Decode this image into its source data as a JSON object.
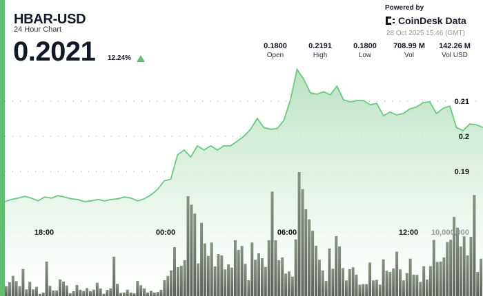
{
  "header": {
    "title": "HBAR-USD",
    "subtitle": "24 Hour Chart",
    "price": "0.2021",
    "change": "12.24%",
    "change_direction": "up"
  },
  "branding": {
    "powered_by": "Powered by",
    "name": "CoinDesk Data",
    "timestamp": "28 Oct 2025 15:46 (GMT)"
  },
  "stats": [
    {
      "value": "0.1800",
      "label": "Open"
    },
    {
      "value": "0.2191",
      "label": "High"
    },
    {
      "value": "0.1800",
      "label": "Low"
    },
    {
      "value": "708.99 M",
      "label": "Vol"
    },
    {
      "value": "142.26 M",
      "label": "Vol USD"
    }
  ],
  "colors": {
    "accent": "#5fbf73",
    "line": "#6cc77f",
    "volume": "#6f7a6c"
  },
  "chart_data": {
    "type": "area",
    "price_axis": {
      "ticks": [
        "0.21",
        "0.2",
        "0.19"
      ],
      "tick_values": [
        0.21,
        0.2,
        0.19
      ]
    },
    "time_axis": {
      "ticks": [
        "18:00",
        "00:00",
        "06:00",
        "12:00"
      ]
    },
    "volume_axis": {
      "label": "10,000,000",
      "value": 10000000
    },
    "prices": [
      0.1814,
      0.182,
      0.1824,
      0.1829,
      0.1824,
      0.1816,
      0.1827,
      0.1824,
      0.1831,
      0.1827,
      0.1822,
      0.182,
      0.1814,
      0.1816,
      0.182,
      0.1816,
      0.182,
      0.1822,
      0.1827,
      0.1824,
      0.1816,
      0.1822,
      0.1833,
      0.1849,
      0.1873,
      0.1878,
      0.1947,
      0.1961,
      0.1941,
      0.1973,
      0.1961,
      0.1973,
      0.1961,
      0.1973,
      0.1973,
      0.1986,
      0.2,
      0.202,
      0.2051,
      0.2025,
      0.202,
      0.2022,
      0.2045,
      0.2104,
      0.2191,
      0.2163,
      0.2124,
      0.212,
      0.2127,
      0.2118,
      0.2143,
      0.2104,
      0.2098,
      0.2102,
      0.2102,
      0.209,
      0.2094,
      0.2059,
      0.2069,
      0.2061,
      0.2065,
      0.2078,
      0.2084,
      0.2096,
      0.2098,
      0.2065,
      0.208,
      0.2086,
      0.2025,
      0.2016,
      0.2035,
      0.2033,
      0.2025
    ],
    "volumes_millions": [
      1.54,
      2.15,
      3.15,
      2.33,
      1.54,
      4.23,
      1.04,
      2.22,
      1.04,
      1.43,
      0.36,
      0.54,
      5.38,
      1.58,
      0.86,
      0.86,
      2.58,
      2.26,
      1.65,
      0.43,
      0.75,
      1.72,
      0.97,
      0.79,
      1.25,
      0.75,
      1.0,
      2.08,
      1.18,
      0.36,
      0.97,
      1.18,
      6.13,
      1.9,
      0.5,
      0.54,
      1.0,
      0.54,
      0.43,
      2.37,
      1.68,
      1.18,
      0.54,
      0.82,
      0.54,
      0.65,
      0.97,
      2.47,
      3.15,
      4.01,
      7.63,
      4.52,
      4.73,
      5.59,
      15.59,
      14.27,
      12.87,
      5.09,
      11.43,
      8.21,
      6.27,
      8.35,
      4.62,
      6.56,
      6.34,
      4.16,
      4.95,
      4.44,
      8.71,
      7.2,
      7.81,
      5.02,
      2.47,
      8.35,
      5.66,
      6.67,
      5.91,
      4.55,
      8.71,
      16.31,
      8.71,
      5.59,
      6.02,
      3.51,
      3.84,
      3.01,
      8.85,
      19.35,
      16.7,
      13.55,
      11.97,
      10.18,
      7.85,
      5.66,
      4.01,
      2.37,
      7.42,
      4.27,
      9.35,
      7.74,
      4.37,
      2.44,
      4.19,
      4.48,
      3.33,
      1.79,
      1.86,
      1.86,
      5.23,
      2.44,
      2.54,
      1.79,
      5.73,
      3.94,
      3.76,
      4.3,
      6.92,
      4.16,
      2.44,
      3.58,
      5.84,
      3.33,
      3.3,
      2.22,
      4.66,
      2.58,
      4.66,
      8.75,
      5.34,
      5.38,
      6.02,
      8.42,
      8.78,
      12.37,
      10.68,
      7.74,
      9.32,
      6.34,
      9.25,
      15.77,
      3.76,
      5.84
    ]
  }
}
